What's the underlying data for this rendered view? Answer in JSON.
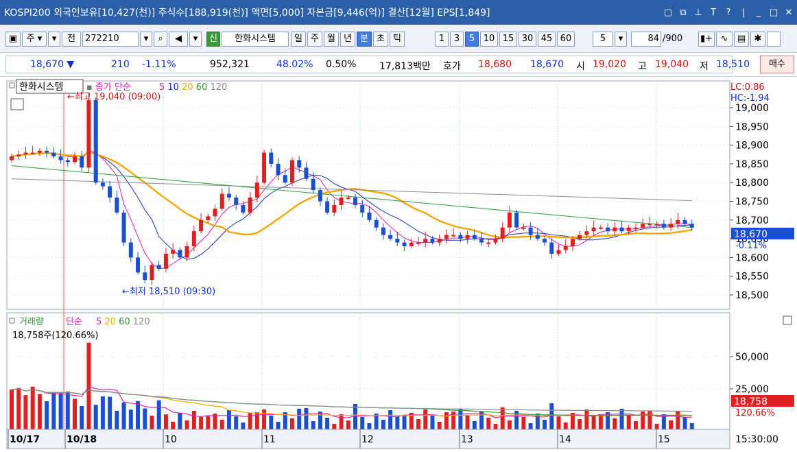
{
  "title": "KOSPI200 외국인보유[10,427(천)] 주식수[188,919(천)] 액면[5,000] 자본금[9,446(억)] 결산[12월] EPS[1,849]",
  "window_icons": [
    "restore-icon",
    "popout-icon",
    "pin-icon",
    "font-icon",
    "help-icon",
    "minimize-icon",
    "maximize-icon",
    "close-icon"
  ],
  "toolbar": {
    "stock_type": "주",
    "prefix": "전",
    "code": "272210",
    "new_badge": "신",
    "stock_name": "한화시스템",
    "periods": [
      "일",
      "주",
      "월",
      "년",
      "분",
      "초",
      "틱"
    ],
    "selected_period": "분",
    "intervals": [
      "1",
      "3",
      "5",
      "10",
      "15",
      "30",
      "45",
      "60"
    ],
    "selected_interval": "5",
    "interval_value": "5",
    "count": "84",
    "count_max": "/900"
  },
  "quote": {
    "price": "18,670 ▼",
    "change": "210",
    "change_pct": "-1.11%",
    "volume": "952,321",
    "vol_ratio": "48.02%",
    "turnover": "0.50%",
    "amount": "17,813백만",
    "ask_label": "호가",
    "ask": "18,680",
    "bid": "18,670",
    "open_label": "시",
    "open": "19,020",
    "high_label": "고",
    "high": "19,040",
    "low_label": "저",
    "low": "18,510",
    "buy_button": "매수"
  },
  "price_panel": {
    "stock_tag": "한화시스템",
    "legend_prefix": "종가 단순",
    "ma_labels": [
      "5",
      "10",
      "20",
      "60",
      "120"
    ],
    "lc": "LC:0.86",
    "hc": "HC:-1.94",
    "high_marker": "←최고 19,040 (09:00)",
    "low_marker": "←최저 18,510 (09:30)",
    "current_tag": "18,670",
    "current_pct": "-0.11%",
    "y_ticks": [
      "19,000",
      "18,950",
      "18,900",
      "18,850",
      "18,800",
      "18,750",
      "18,700",
      "18,650",
      "18,600",
      "18,550",
      "18,500"
    ]
  },
  "volume_panel": {
    "label": "거래량",
    "legend_prefix": "단순",
    "ma_labels": [
      "5",
      "20",
      "60",
      "120"
    ],
    "readout": "18,758주(120.66%)",
    "current_tag": "18,758",
    "current_pct": "120.66%",
    "y_ticks": [
      "50,000",
      "25,000"
    ]
  },
  "x_axis": {
    "labels": [
      "10/17",
      "10/18",
      "10",
      "11",
      "12",
      "13",
      "14",
      "15"
    ],
    "time": "15:30:00"
  },
  "colors": {
    "up": "#e02020",
    "down": "#1a4fd0",
    "ma5": "#e020b0",
    "ma10": "#1a30c0",
    "ma20": "#f0a800",
    "ma60": "#2a9a3a",
    "ma120": "#8a8a8a"
  }
}
